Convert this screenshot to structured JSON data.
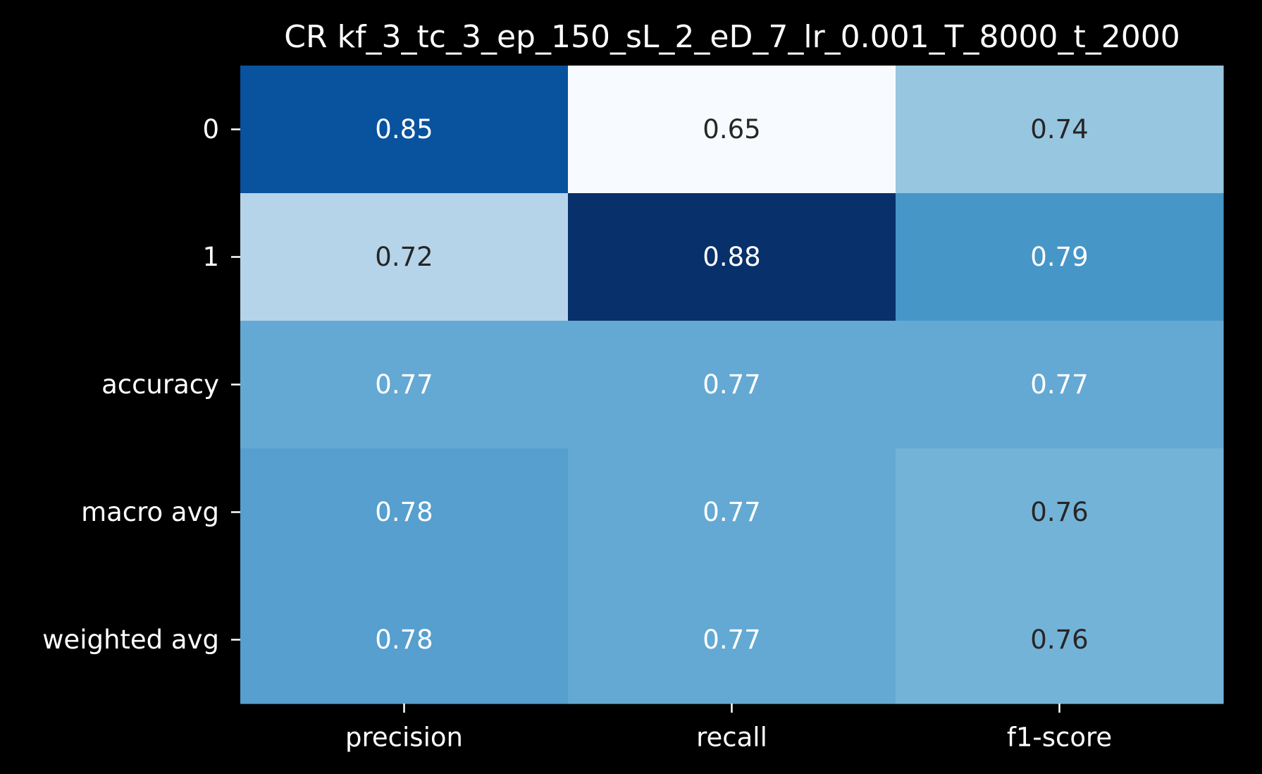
{
  "chart_data": {
    "type": "heatmap",
    "title": "CR kf_3_tc_3_ep_150_sL_2_eD_7_lr_0.001_T_8000_t_2000",
    "xlabel": "",
    "ylabel": "",
    "columns": [
      "precision",
      "recall",
      "f1-score"
    ],
    "rows": [
      "0",
      "1",
      "accuracy",
      "macro avg",
      "weighted avg"
    ],
    "values": [
      [
        0.85,
        0.65,
        0.74
      ],
      [
        0.72,
        0.88,
        0.79
      ],
      [
        0.77,
        0.77,
        0.77
      ],
      [
        0.78,
        0.77,
        0.76
      ],
      [
        0.78,
        0.77,
        0.76
      ]
    ],
    "value_format": "0.00",
    "colormap": "Blues",
    "colorbar": false,
    "grid": false,
    "vmin": 0.65,
    "vmax": 0.88
  },
  "colors": {
    "background": "#000000",
    "text": "#ffffff",
    "dark_text": "#262626",
    "light_text": "#ffffff"
  }
}
